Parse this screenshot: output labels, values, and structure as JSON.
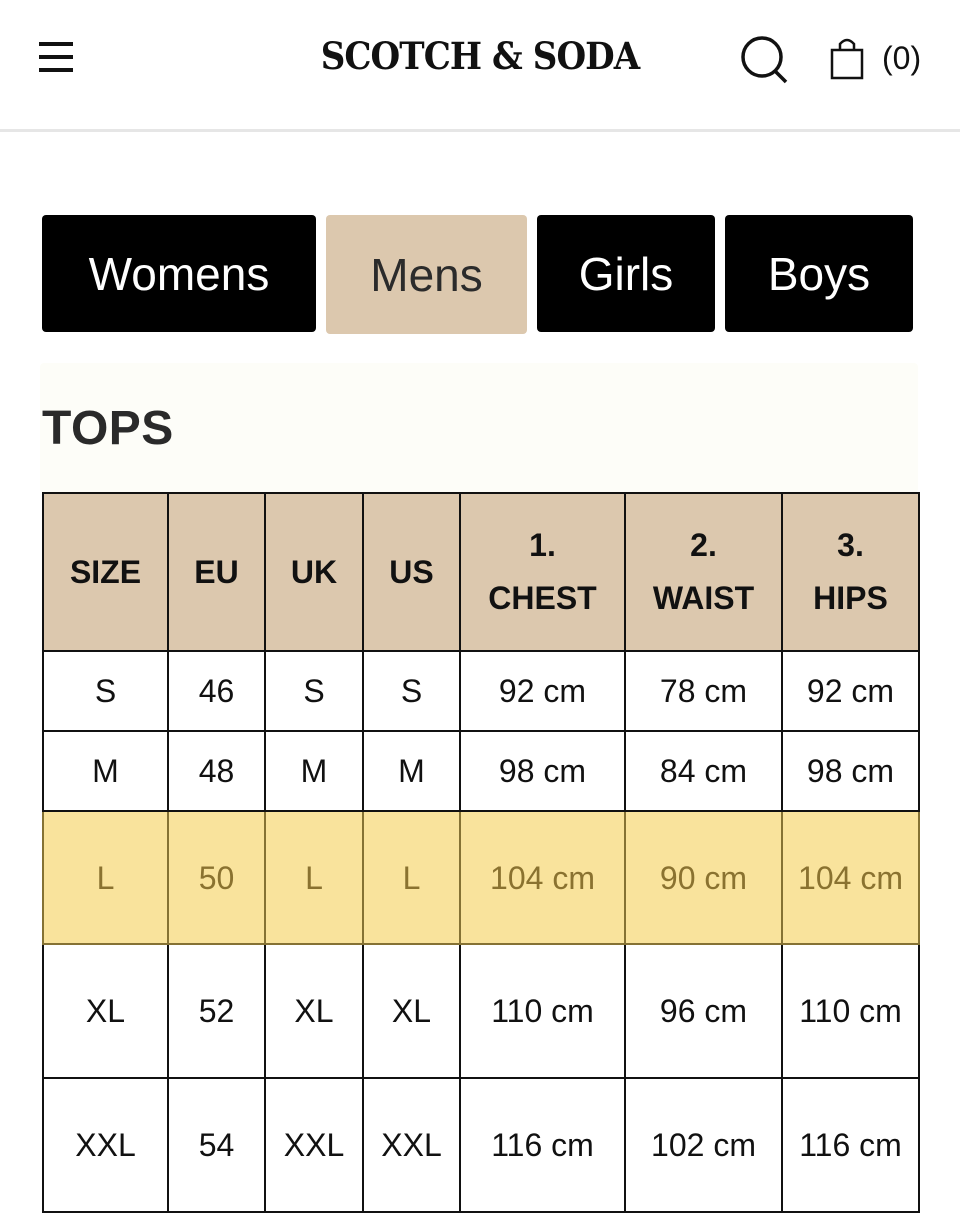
{
  "header": {
    "logo": "SCOTCH & SODA",
    "menu_icon": "hamburger-menu-icon",
    "search_icon": "search-icon",
    "bag_icon": "shopping-bag-icon",
    "cart_count": "(0)"
  },
  "tabs": [
    {
      "label": "Womens",
      "active": false
    },
    {
      "label": "Mens",
      "active": true
    },
    {
      "label": "Girls",
      "active": false
    },
    {
      "label": "Boys",
      "active": false
    }
  ],
  "section": {
    "title": "TOPS",
    "columns": [
      [
        "SIZE"
      ],
      [
        "EU"
      ],
      [
        "UK"
      ],
      [
        "US"
      ],
      [
        "1.",
        "CHEST"
      ],
      [
        "2.",
        "WAIST"
      ],
      [
        "3.",
        "HIPS"
      ]
    ],
    "rows": [
      [
        "S",
        "46",
        "S",
        "S",
        "92 cm",
        "78 cm",
        "92 cm"
      ],
      [
        "M",
        "48",
        "M",
        "M",
        "98 cm",
        "84 cm",
        "98 cm"
      ],
      [
        "L",
        "50",
        "L",
        "L",
        "104 cm",
        "90 cm",
        "104 cm"
      ],
      [
        "XL",
        "52",
        "XL",
        "XL",
        "110 cm",
        "96 cm",
        "110 cm"
      ],
      [
        "XXL",
        "54",
        "XXL",
        "XXL",
        "116 cm",
        "102 cm",
        "116 cm"
      ]
    ],
    "highlighted_row": "L",
    "highlight_color": "#f9e39c"
  },
  "colors": {
    "tab_active": "#dcc8ae",
    "tab_inactive": "#000000",
    "table_header": "#dcc8ae"
  }
}
